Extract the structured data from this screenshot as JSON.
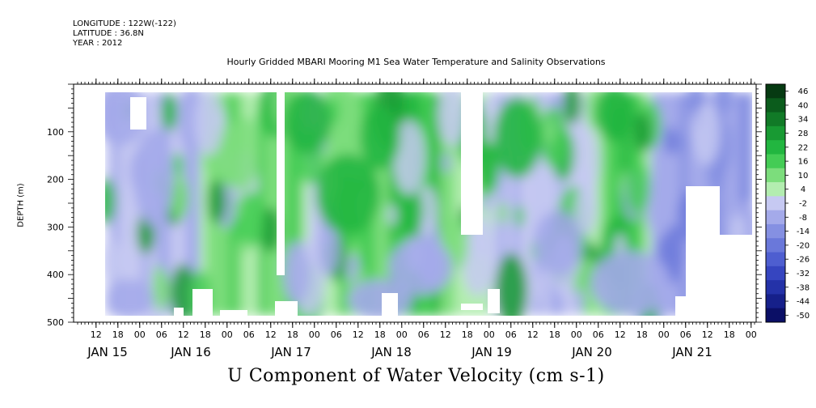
{
  "header": {
    "longitude": "LONGITUDE : 122W(-122)",
    "latitude": "LATITUDE : 36.8N",
    "year": "YEAR : 2012",
    "title": "Hourly Gridded MBARI Mooring M1 Sea Water Temperature and Salinity Observations"
  },
  "chart_data": {
    "type": "heatmap",
    "title": "U Component of Water Velocity (cm s-1)",
    "ylabel": "DEPTH (m)",
    "xlabel": "",
    "ylim": [
      500,
      0
    ],
    "y_ticks": [
      100,
      200,
      300,
      400,
      500
    ],
    "hour_ticks": [
      "12",
      "18",
      "00",
      "06",
      "12",
      "18",
      "00",
      "06",
      "12",
      "18",
      "00",
      "06",
      "12",
      "18",
      "00",
      "06",
      "12",
      "18",
      "00",
      "06",
      "12",
      "18",
      "00",
      "06",
      "12",
      "18",
      "00",
      "06",
      "12",
      "18",
      "00"
    ],
    "day_labels": [
      "JAN 15",
      "JAN 16",
      "JAN 17",
      "JAN 18",
      "JAN 19",
      "JAN 20",
      "JAN 21"
    ],
    "colorbar_levels": [
      "46",
      "40",
      "34",
      "28",
      "22",
      "16",
      "10",
      "4",
      "-2",
      "-8",
      "-14",
      "-20",
      "-26",
      "-32",
      "-38",
      "-44",
      "-50"
    ],
    "colorbar_colors": [
      "#063a12",
      "#0b5c1c",
      "#117a27",
      "#189a33",
      "#22b640",
      "#44cc55",
      "#7cdd7c",
      "#b3edb0",
      "#c6c9f2",
      "#a4aaea",
      "#8590e2",
      "#6a78da",
      "#4e5ed0",
      "#3645c0",
      "#2432a8",
      "#16208a",
      "#0b0f66"
    ],
    "grid": false,
    "legend": "right"
  }
}
